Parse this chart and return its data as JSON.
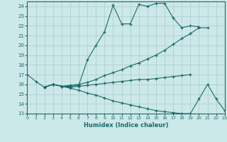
{
  "xlabel": "Humidex (Indice chaleur)",
  "background_color": "#cce8e8",
  "grid_color": "#aacccc",
  "line_color": "#1a6b6b",
  "xlim": [
    0,
    23
  ],
  "ylim": [
    13,
    24.5
  ],
  "xticks": [
    0,
    1,
    2,
    3,
    4,
    5,
    6,
    7,
    8,
    9,
    10,
    11,
    12,
    13,
    14,
    15,
    16,
    17,
    18,
    19,
    20,
    21,
    22,
    23
  ],
  "yticks": [
    13,
    14,
    15,
    16,
    17,
    18,
    19,
    20,
    21,
    22,
    23,
    24
  ],
  "line1_x": [
    0,
    1,
    2,
    3,
    4,
    5,
    6,
    7,
    8,
    9,
    10,
    11,
    12,
    13,
    14,
    15,
    16,
    17,
    18,
    19,
    20
  ],
  "line1_y": [
    17,
    16.3,
    15.7,
    16.0,
    15.8,
    15.8,
    15.9,
    18.5,
    20.0,
    21.4,
    24.1,
    22.2,
    22.2,
    24.2,
    24.0,
    24.3,
    24.3,
    22.8,
    21.8,
    22.0,
    21.9
  ],
  "line2_x": [
    2,
    3,
    4,
    5,
    6,
    7,
    8,
    9,
    10,
    11,
    12,
    13,
    14,
    15,
    16,
    17,
    18,
    19,
    20,
    21
  ],
  "line2_y": [
    15.7,
    16.0,
    15.8,
    15.9,
    16.0,
    16.2,
    16.5,
    16.9,
    17.2,
    17.5,
    17.9,
    18.2,
    18.6,
    19.0,
    19.5,
    20.1,
    20.7,
    21.2,
    21.8,
    21.8
  ],
  "line3_x": [
    2,
    3,
    4,
    5,
    6,
    7,
    8,
    9,
    10,
    11,
    12,
    13,
    14,
    15,
    16,
    17,
    18,
    19,
    20,
    21,
    22,
    23
  ],
  "line3_y": [
    15.7,
    16.0,
    15.8,
    15.6,
    15.4,
    15.1,
    14.9,
    14.6,
    14.3,
    14.1,
    13.9,
    13.7,
    13.5,
    13.3,
    13.2,
    13.1,
    13.0,
    13.0,
    14.5,
    16.0,
    14.5,
    13.3
  ],
  "line4_x": [
    2,
    3,
    4,
    5,
    6,
    7,
    8,
    9,
    10,
    11,
    12,
    13,
    14,
    15,
    16,
    17,
    18,
    19
  ],
  "line4_y": [
    15.7,
    16.0,
    15.8,
    15.7,
    15.8,
    15.9,
    16.0,
    16.1,
    16.2,
    16.3,
    16.4,
    16.5,
    16.5,
    16.6,
    16.7,
    16.8,
    16.9,
    17.0
  ]
}
